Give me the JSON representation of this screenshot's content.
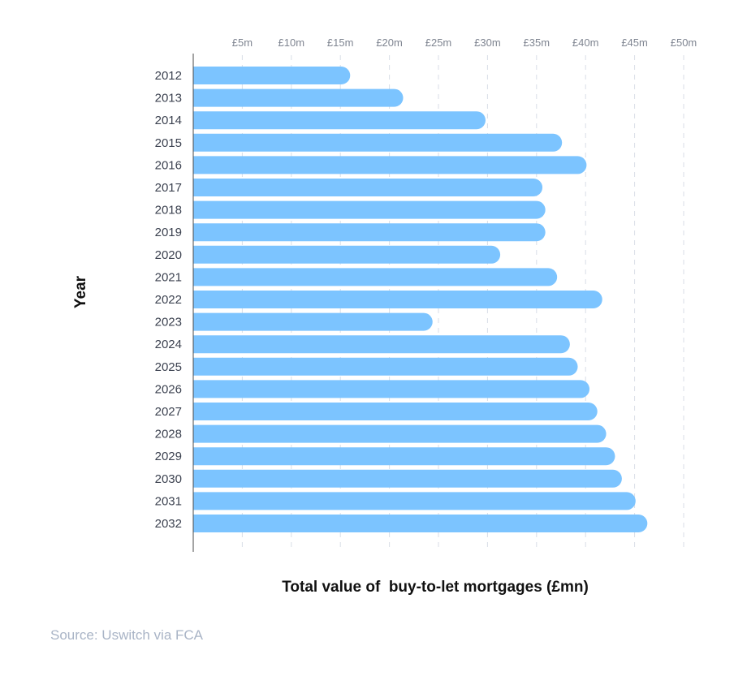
{
  "chart_data": {
    "type": "bar",
    "orientation": "horizontal",
    "title": "",
    "xlabel": "Total value of  buy-to-let mortgages (£mn)",
    "ylabel": "Year",
    "xlim": [
      0,
      50
    ],
    "xticks": [
      5,
      10,
      15,
      20,
      25,
      30,
      35,
      40,
      45,
      50
    ],
    "xtick_labels": [
      "£5m",
      "£10m",
      "£15m",
      "£20m",
      "£25m",
      "£30m",
      "£35m",
      "£40m",
      "£45m",
      "£50m"
    ],
    "x_axis_position": "top",
    "grid": "vertical dashed",
    "bar_color": "#7cc4ff",
    "categories": [
      "2012",
      "2013",
      "2014",
      "2015",
      "2016",
      "2017",
      "2018",
      "2019",
      "2020",
      "2021",
      "2022",
      "2023",
      "2024",
      "2025",
      "2026",
      "2027",
      "2028",
      "2029",
      "2030",
      "2031",
      "2032"
    ],
    "values": [
      16,
      21.4,
      29.8,
      37.6,
      40.1,
      35.6,
      35.9,
      35.9,
      31.3,
      37.1,
      41.7,
      24.4,
      38.4,
      39.2,
      40.4,
      41.2,
      42.1,
      43,
      43.7,
      45.1,
      46.3
    ]
  },
  "source": "Source: Uswitch via FCA"
}
